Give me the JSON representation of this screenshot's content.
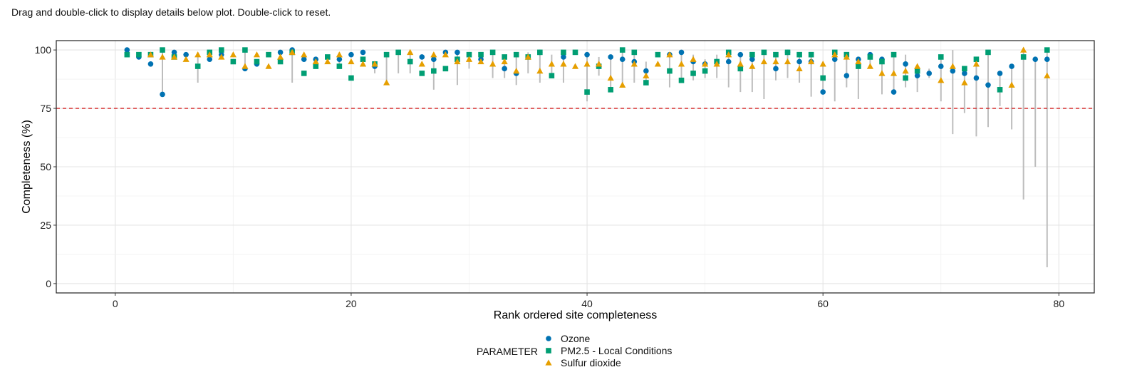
{
  "instructions": "Drag and double-click to display details below plot. Double-click to reset.",
  "chart_data": {
    "type": "scatter",
    "xlabel": "Rank ordered site completeness",
    "ylabel": "Completeness (%)",
    "xlim": [
      -5,
      83
    ],
    "ylim": [
      -4,
      104
    ],
    "x_ticks": [
      0,
      20,
      40,
      60,
      80
    ],
    "y_ticks": [
      0,
      25,
      50,
      75,
      100
    ],
    "grid": true,
    "threshold": {
      "y": 75,
      "color": "#d62728",
      "style": "dashed"
    },
    "legend": {
      "title": "PARAMETER",
      "position": "bottom"
    },
    "series": [
      {
        "name": "Ozone",
        "marker": "circle",
        "color": "#0072B2",
        "points": [
          [
            1,
            100
          ],
          [
            2,
            97
          ],
          [
            3,
            94
          ],
          [
            4,
            81
          ],
          [
            5,
            99
          ],
          [
            6,
            98
          ],
          [
            8,
            96
          ],
          [
            9,
            98
          ],
          [
            11,
            92
          ],
          [
            12,
            94
          ],
          [
            14,
            99
          ],
          [
            15,
            100
          ],
          [
            16,
            96
          ],
          [
            17,
            96
          ],
          [
            19,
            96
          ],
          [
            20,
            98
          ],
          [
            21,
            99
          ],
          [
            22,
            93
          ],
          [
            26,
            97
          ],
          [
            27,
            96
          ],
          [
            28,
            99
          ],
          [
            29,
            99
          ],
          [
            31,
            96
          ],
          [
            33,
            92
          ],
          [
            34,
            90
          ],
          [
            36,
            99
          ],
          [
            38,
            97
          ],
          [
            40,
            98
          ],
          [
            42,
            97
          ],
          [
            43,
            96
          ],
          [
            44,
            95
          ],
          [
            45,
            91
          ],
          [
            47,
            98
          ],
          [
            48,
            99
          ],
          [
            49,
            95
          ],
          [
            50,
            94
          ],
          [
            51,
            95
          ],
          [
            52,
            95
          ],
          [
            53,
            98
          ],
          [
            54,
            96
          ],
          [
            56,
            92
          ],
          [
            57,
            99
          ],
          [
            58,
            95
          ],
          [
            59,
            95
          ],
          [
            60,
            82
          ],
          [
            61,
            96
          ],
          [
            62,
            89
          ],
          [
            63,
            96
          ],
          [
            64,
            98
          ],
          [
            65,
            96
          ],
          [
            66,
            82
          ],
          [
            67,
            94
          ],
          [
            68,
            89
          ],
          [
            69,
            90
          ],
          [
            70,
            93
          ],
          [
            71,
            91
          ],
          [
            72,
            90
          ],
          [
            73,
            88
          ],
          [
            74,
            85
          ],
          [
            75,
            90
          ],
          [
            76,
            93
          ],
          [
            78,
            96
          ],
          [
            79,
            96
          ]
        ]
      },
      {
        "name": "PM2.5 - Local Conditions",
        "marker": "square",
        "color": "#009E73",
        "points": [
          [
            1,
            98
          ],
          [
            2,
            98
          ],
          [
            3,
            98
          ],
          [
            4,
            100
          ],
          [
            5,
            97
          ],
          [
            7,
            93
          ],
          [
            8,
            99
          ],
          [
            9,
            100
          ],
          [
            10,
            95
          ],
          [
            11,
            100
          ],
          [
            12,
            95
          ],
          [
            13,
            98
          ],
          [
            14,
            95
          ],
          [
            15,
            99
          ],
          [
            16,
            90
          ],
          [
            17,
            93
          ],
          [
            18,
            97
          ],
          [
            19,
            93
          ],
          [
            20,
            88
          ],
          [
            21,
            96
          ],
          [
            22,
            94
          ],
          [
            23,
            98
          ],
          [
            24,
            99
          ],
          [
            25,
            95
          ],
          [
            26,
            90
          ],
          [
            27,
            91
          ],
          [
            28,
            92
          ],
          [
            29,
            96
          ],
          [
            30,
            98
          ],
          [
            31,
            98
          ],
          [
            32,
            99
          ],
          [
            33,
            97
          ],
          [
            34,
            98
          ],
          [
            35,
            97
          ],
          [
            36,
            99
          ],
          [
            37,
            89
          ],
          [
            38,
            99
          ],
          [
            39,
            99
          ],
          [
            40,
            82
          ],
          [
            41,
            93
          ],
          [
            42,
            83
          ],
          [
            43,
            100
          ],
          [
            44,
            99
          ],
          [
            45,
            86
          ],
          [
            46,
            98
          ],
          [
            47,
            91
          ],
          [
            48,
            87
          ],
          [
            49,
            90
          ],
          [
            50,
            91
          ],
          [
            51,
            95
          ],
          [
            52,
            99
          ],
          [
            53,
            92
          ],
          [
            54,
            98
          ],
          [
            55,
            99
          ],
          [
            56,
            98
          ],
          [
            57,
            99
          ],
          [
            58,
            98
          ],
          [
            59,
            98
          ],
          [
            60,
            88
          ],
          [
            61,
            99
          ],
          [
            62,
            98
          ],
          [
            63,
            93
          ],
          [
            64,
            97
          ],
          [
            65,
            95
          ],
          [
            66,
            98
          ],
          [
            67,
            88
          ],
          [
            68,
            91
          ],
          [
            70,
            97
          ],
          [
            72,
            92
          ],
          [
            73,
            96
          ],
          [
            74,
            99
          ],
          [
            75,
            83
          ],
          [
            77,
            97
          ],
          [
            79,
            100
          ]
        ]
      },
      {
        "name": "Sulfur dioxide",
        "marker": "triangle",
        "color": "#E69F00",
        "points": [
          [
            3,
            98
          ],
          [
            4,
            97
          ],
          [
            5,
            97
          ],
          [
            6,
            96
          ],
          [
            7,
            98
          ],
          [
            8,
            98
          ],
          [
            9,
            97
          ],
          [
            10,
            98
          ],
          [
            11,
            93
          ],
          [
            12,
            98
          ],
          [
            13,
            93
          ],
          [
            14,
            97
          ],
          [
            15,
            99
          ],
          [
            16,
            98
          ],
          [
            17,
            95
          ],
          [
            18,
            95
          ],
          [
            19,
            98
          ],
          [
            20,
            95
          ],
          [
            21,
            94
          ],
          [
            22,
            94
          ],
          [
            23,
            86
          ],
          [
            25,
            99
          ],
          [
            26,
            94
          ],
          [
            27,
            98
          ],
          [
            28,
            98
          ],
          [
            29,
            95
          ],
          [
            30,
            96
          ],
          [
            31,
            95
          ],
          [
            32,
            94
          ],
          [
            33,
            95
          ],
          [
            34,
            91
          ],
          [
            35,
            97
          ],
          [
            36,
            91
          ],
          [
            37,
            94
          ],
          [
            38,
            94
          ],
          [
            39,
            93
          ],
          [
            40,
            94
          ],
          [
            41,
            94
          ],
          [
            42,
            88
          ],
          [
            43,
            85
          ],
          [
            44,
            94
          ],
          [
            45,
            89
          ],
          [
            46,
            94
          ],
          [
            47,
            98
          ],
          [
            48,
            94
          ],
          [
            49,
            96
          ],
          [
            50,
            94
          ],
          [
            51,
            94
          ],
          [
            52,
            98
          ],
          [
            53,
            94
          ],
          [
            54,
            93
          ],
          [
            55,
            95
          ],
          [
            56,
            95
          ],
          [
            57,
            95
          ],
          [
            58,
            92
          ],
          [
            59,
            95
          ],
          [
            60,
            94
          ],
          [
            61,
            98
          ],
          [
            62,
            97
          ],
          [
            63,
            95
          ],
          [
            64,
            93
          ],
          [
            65,
            90
          ],
          [
            66,
            90
          ],
          [
            67,
            91
          ],
          [
            68,
            93
          ],
          [
            70,
            87
          ],
          [
            71,
            93
          ],
          [
            72,
            86
          ],
          [
            73,
            94
          ],
          [
            76,
            85
          ],
          [
            77,
            100
          ],
          [
            79,
            89
          ]
        ]
      }
    ],
    "ranges": [
      [
        4,
        81,
        100
      ],
      [
        7,
        86,
        99
      ],
      [
        11,
        91,
        100
      ],
      [
        15,
        86,
        100
      ],
      [
        19,
        92,
        99
      ],
      [
        22,
        90,
        95
      ],
      [
        23,
        86,
        99
      ],
      [
        24,
        90,
        99
      ],
      [
        25,
        90,
        99
      ],
      [
        27,
        83,
        98
      ],
      [
        29,
        85,
        99
      ],
      [
        30,
        92,
        99
      ],
      [
        32,
        88,
        99
      ],
      [
        33,
        88,
        97
      ],
      [
        34,
        85,
        98
      ],
      [
        35,
        90,
        99
      ],
      [
        36,
        86,
        100
      ],
      [
        37,
        88,
        98
      ],
      [
        38,
        86,
        99
      ],
      [
        40,
        78,
        98
      ],
      [
        41,
        89,
        97
      ],
      [
        42,
        83,
        98
      ],
      [
        43,
        85,
        100
      ],
      [
        44,
        86,
        99
      ],
      [
        45,
        86,
        95
      ],
      [
        47,
        84,
        98
      ],
      [
        48,
        86,
        100
      ],
      [
        49,
        87,
        98
      ],
      [
        50,
        88,
        96
      ],
      [
        51,
        88,
        98
      ],
      [
        52,
        84,
        99
      ],
      [
        53,
        82,
        98
      ],
      [
        54,
        82,
        98
      ],
      [
        55,
        79,
        99
      ],
      [
        56,
        87,
        98
      ],
      [
        57,
        88,
        99
      ],
      [
        58,
        86,
        98
      ],
      [
        59,
        80,
        98
      ],
      [
        60,
        82,
        95
      ],
      [
        61,
        78,
        100
      ],
      [
        62,
        84,
        98
      ],
      [
        63,
        79,
        96
      ],
      [
        64,
        92,
        98
      ],
      [
        65,
        81,
        96
      ],
      [
        66,
        82,
        98
      ],
      [
        67,
        84,
        98
      ],
      [
        68,
        82,
        93
      ],
      [
        69,
        88,
        92
      ],
      [
        70,
        78,
        97
      ],
      [
        71,
        64,
        100
      ],
      [
        72,
        73,
        92
      ],
      [
        73,
        63,
        96
      ],
      [
        74,
        67,
        99
      ],
      [
        75,
        76,
        90
      ],
      [
        76,
        66,
        93
      ],
      [
        77,
        36,
        100
      ],
      [
        78,
        50,
        96
      ],
      [
        79,
        7,
        100
      ]
    ]
  }
}
